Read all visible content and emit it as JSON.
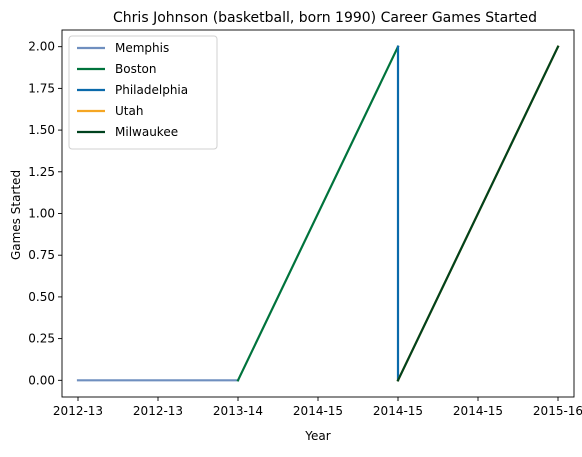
{
  "chart_data": {
    "type": "line",
    "title": "Chris Johnson (basketball, born 1990) Career Games Started",
    "xlabel": "Year",
    "ylabel": "Games Started",
    "x_tick_labels": [
      "2012-13",
      "2012-13",
      "2013-14",
      "2014-15",
      "2014-15",
      "2014-15",
      "2015-16"
    ],
    "xlim": [
      -0.2,
      6.2
    ],
    "ylim": [
      -0.1,
      2.1
    ],
    "y_ticks": [
      0.0,
      0.25,
      0.5,
      0.75,
      1.0,
      1.25,
      1.5,
      1.75,
      2.0
    ],
    "y_tick_labels": [
      "0.00",
      "0.25",
      "0.50",
      "0.75",
      "1.00",
      "1.25",
      "1.50",
      "1.75",
      "2.00"
    ],
    "grid": false,
    "legend_position": "top-left",
    "series": [
      {
        "name": "Memphis",
        "color": "#6f8fbf",
        "x": [
          0,
          1,
          2
        ],
        "y": [
          0,
          0,
          0
        ]
      },
      {
        "name": "Boston",
        "color": "#00733c",
        "x": [
          2,
          4
        ],
        "y": [
          0,
          2
        ]
      },
      {
        "name": "Philadelphia",
        "color": "#0a6aab",
        "x": [
          4,
          4
        ],
        "y": [
          2,
          0
        ]
      },
      {
        "name": "Utah",
        "color": "#f5a623",
        "x": [
          4,
          6
        ],
        "y": [
          0,
          2
        ]
      },
      {
        "name": "Milwaukee",
        "color": "#00421e",
        "x": [
          4,
          6
        ],
        "y": [
          0,
          2
        ]
      }
    ]
  }
}
